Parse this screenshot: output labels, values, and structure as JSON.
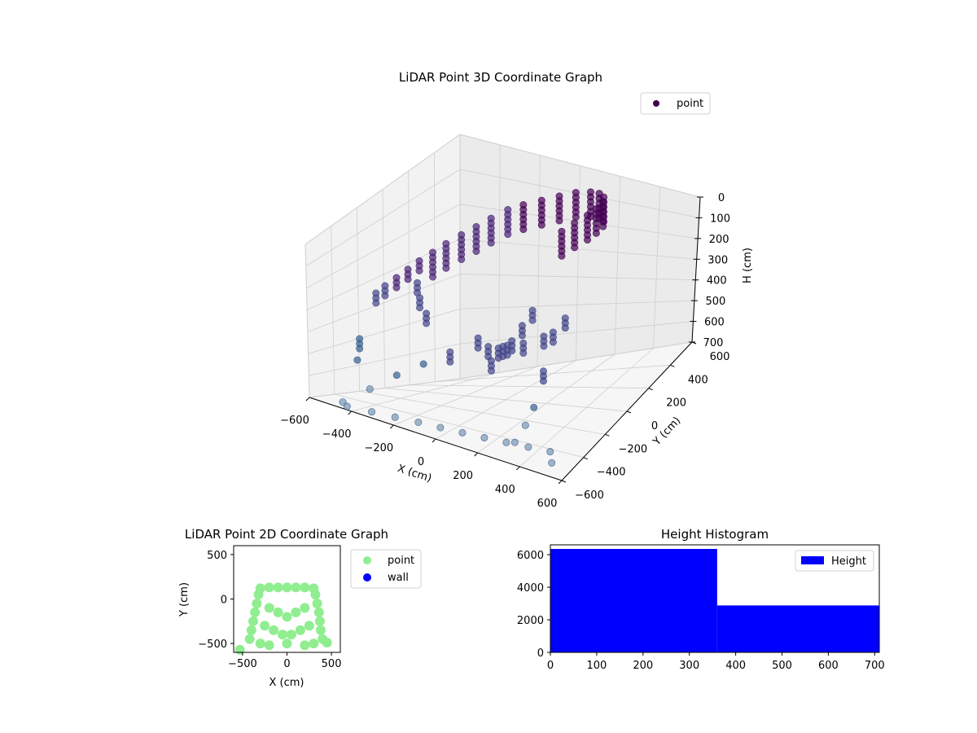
{
  "chart_data": [
    {
      "type": "scatter",
      "projection": "3d",
      "title": "LiDAR Point 3D Coordinate Graph",
      "xlabel": "X (cm)",
      "ylabel": "Y (cm)",
      "zlabel": "H (cm)",
      "xlim": [
        -600,
        600
      ],
      "ylim": [
        -600,
        600
      ],
      "zlim": [
        700,
        0
      ],
      "xticks": [
        "−600",
        "−400",
        "−200",
        "0",
        "200",
        "400",
        "600"
      ],
      "yticks": [
        "−600",
        "−400",
        "−200",
        "0",
        "200",
        "400",
        "600"
      ],
      "zticks": [
        "0",
        "100",
        "200",
        "300",
        "400",
        "500",
        "600",
        "700"
      ],
      "grid": true,
      "legend": {
        "position": "top-right",
        "entries": [
          "point"
        ]
      },
      "colormap": "viridis",
      "series": [
        {
          "name": "point",
          "color": "#440154",
          "points": [
            [
              420,
              -260,
              120
            ],
            [
              450,
              -200,
              110
            ],
            [
              470,
              -120,
              110
            ],
            [
              470,
              -40,
              115
            ],
            [
              460,
              40,
              120
            ],
            [
              430,
              100,
              125
            ],
            [
              380,
              150,
              130
            ],
            [
              320,
              180,
              135
            ],
            [
              240,
              190,
              140
            ],
            [
              160,
              185,
              150
            ],
            [
              80,
              170,
              160
            ],
            [
              0,
              150,
              170
            ],
            [
              -60,
              120,
              180
            ],
            [
              -120,
              80,
              200
            ],
            [
              -170,
              40,
              220
            ],
            [
              -220,
              0,
              240
            ],
            [
              -260,
              -60,
              260
            ],
            [
              -290,
              -120,
              280
            ],
            [
              -320,
              -180,
              300
            ],
            [
              -340,
              -240,
              320
            ],
            [
              -360,
              -300,
              340
            ],
            [
              -380,
              -360,
              360
            ],
            [
              -400,
              -400,
              380
            ],
            [
              300,
              -300,
              350
            ],
            [
              250,
              -300,
              400
            ],
            [
              200,
              -300,
              450
            ],
            [
              150,
              -250,
              480
            ],
            [
              100,
              -200,
              500
            ],
            [
              50,
              -150,
              520
            ],
            [
              0,
              -150,
              520
            ],
            [
              -50,
              -150,
              500
            ],
            [
              100,
              -300,
              520
            ],
            [
              200,
              -200,
              480
            ],
            [
              300,
              -200,
              450
            ],
            [
              350,
              -100,
              420
            ],
            [
              400,
              -300,
              400
            ],
            [
              380,
              -350,
              500
            ],
            [
              350,
              -380,
              600
            ],
            [
              320,
              -400,
              650
            ],
            [
              280,
              -420,
              700
            ],
            [
              -100,
              -300,
              520
            ],
            [
              -200,
              -350,
              560
            ],
            [
              -300,
              -400,
              600
            ],
            [
              -400,
              -450,
              650
            ],
            [
              -500,
              -500,
              700
            ],
            [
              -450,
              -550,
              700
            ],
            [
              -350,
              -520,
              700
            ],
            [
              -250,
              -500,
              700
            ],
            [
              -150,
              -480,
              700
            ],
            [
              -50,
              -470,
              700
            ],
            [
              50,
              -460,
              700
            ],
            [
              150,
              -450,
              700
            ],
            [
              250,
              -440,
              700
            ],
            [
              350,
              -430,
              700
            ],
            [
              450,
              -420,
              700
            ],
            [
              500,
              -500,
              700
            ],
            [
              -550,
              -300,
              600
            ],
            [
              -600,
              -200,
              550
            ],
            [
              -500,
              100,
              400
            ],
            [
              -550,
              200,
              450
            ],
            [
              -580,
              300,
              500
            ]
          ]
        }
      ]
    },
    {
      "type": "scatter",
      "title": "LiDAR Point 2D Coordinate Graph",
      "xlabel": "X (cm)",
      "ylabel": "Y (cm)",
      "xlim": [
        -600,
        600
      ],
      "ylim": [
        -600,
        600
      ],
      "xticks": [
        "−500",
        "0",
        "500"
      ],
      "yticks": [
        "−500",
        "0",
        "500"
      ],
      "legend": {
        "position": "outside-right",
        "entries": [
          "point",
          "wall"
        ]
      },
      "series": [
        {
          "name": "point",
          "color": "#90ee90",
          "points": [
            [
              -300,
              120
            ],
            [
              -200,
              130
            ],
            [
              -100,
              130
            ],
            [
              0,
              130
            ],
            [
              100,
              130
            ],
            [
              200,
              130
            ],
            [
              300,
              120
            ],
            [
              -320,
              50
            ],
            [
              -340,
              -50
            ],
            [
              -360,
              -150
            ],
            [
              -380,
              -250
            ],
            [
              -400,
              -350
            ],
            [
              -420,
              -450
            ],
            [
              320,
              50
            ],
            [
              340,
              -50
            ],
            [
              360,
              -150
            ],
            [
              370,
              -250
            ],
            [
              380,
              -350
            ],
            [
              400,
              -450
            ],
            [
              -200,
              -100
            ],
            [
              -100,
              -150
            ],
            [
              0,
              -200
            ],
            [
              100,
              -150
            ],
            [
              200,
              -100
            ],
            [
              -250,
              -300
            ],
            [
              -150,
              -350
            ],
            [
              -50,
              -400
            ],
            [
              50,
              -400
            ],
            [
              150,
              -350
            ],
            [
              250,
              -300
            ],
            [
              -300,
              -500
            ],
            [
              -200,
              -520
            ],
            [
              0,
              -500
            ],
            [
              200,
              -520
            ],
            [
              300,
              -500
            ],
            [
              -530,
              -570
            ],
            [
              450,
              -490
            ]
          ]
        },
        {
          "name": "wall",
          "color": "#0000ff",
          "points": []
        }
      ]
    },
    {
      "type": "bar",
      "title": "Height Histogram",
      "xlabel": "",
      "ylabel": "",
      "xlim": [
        0,
        710
      ],
      "ylim": [
        0,
        6600
      ],
      "xticks": [
        "0",
        "100",
        "200",
        "300",
        "400",
        "500",
        "600",
        "700"
      ],
      "yticks": [
        "0",
        "2000",
        "4000",
        "6000"
      ],
      "legend": {
        "position": "top-right",
        "entries": [
          "Height"
        ]
      },
      "series": [
        {
          "name": "Height",
          "color": "#0000ff",
          "bins": [
            [
              0,
              360,
              6350
            ],
            [
              360,
              710,
              2880
            ]
          ]
        }
      ]
    }
  ]
}
